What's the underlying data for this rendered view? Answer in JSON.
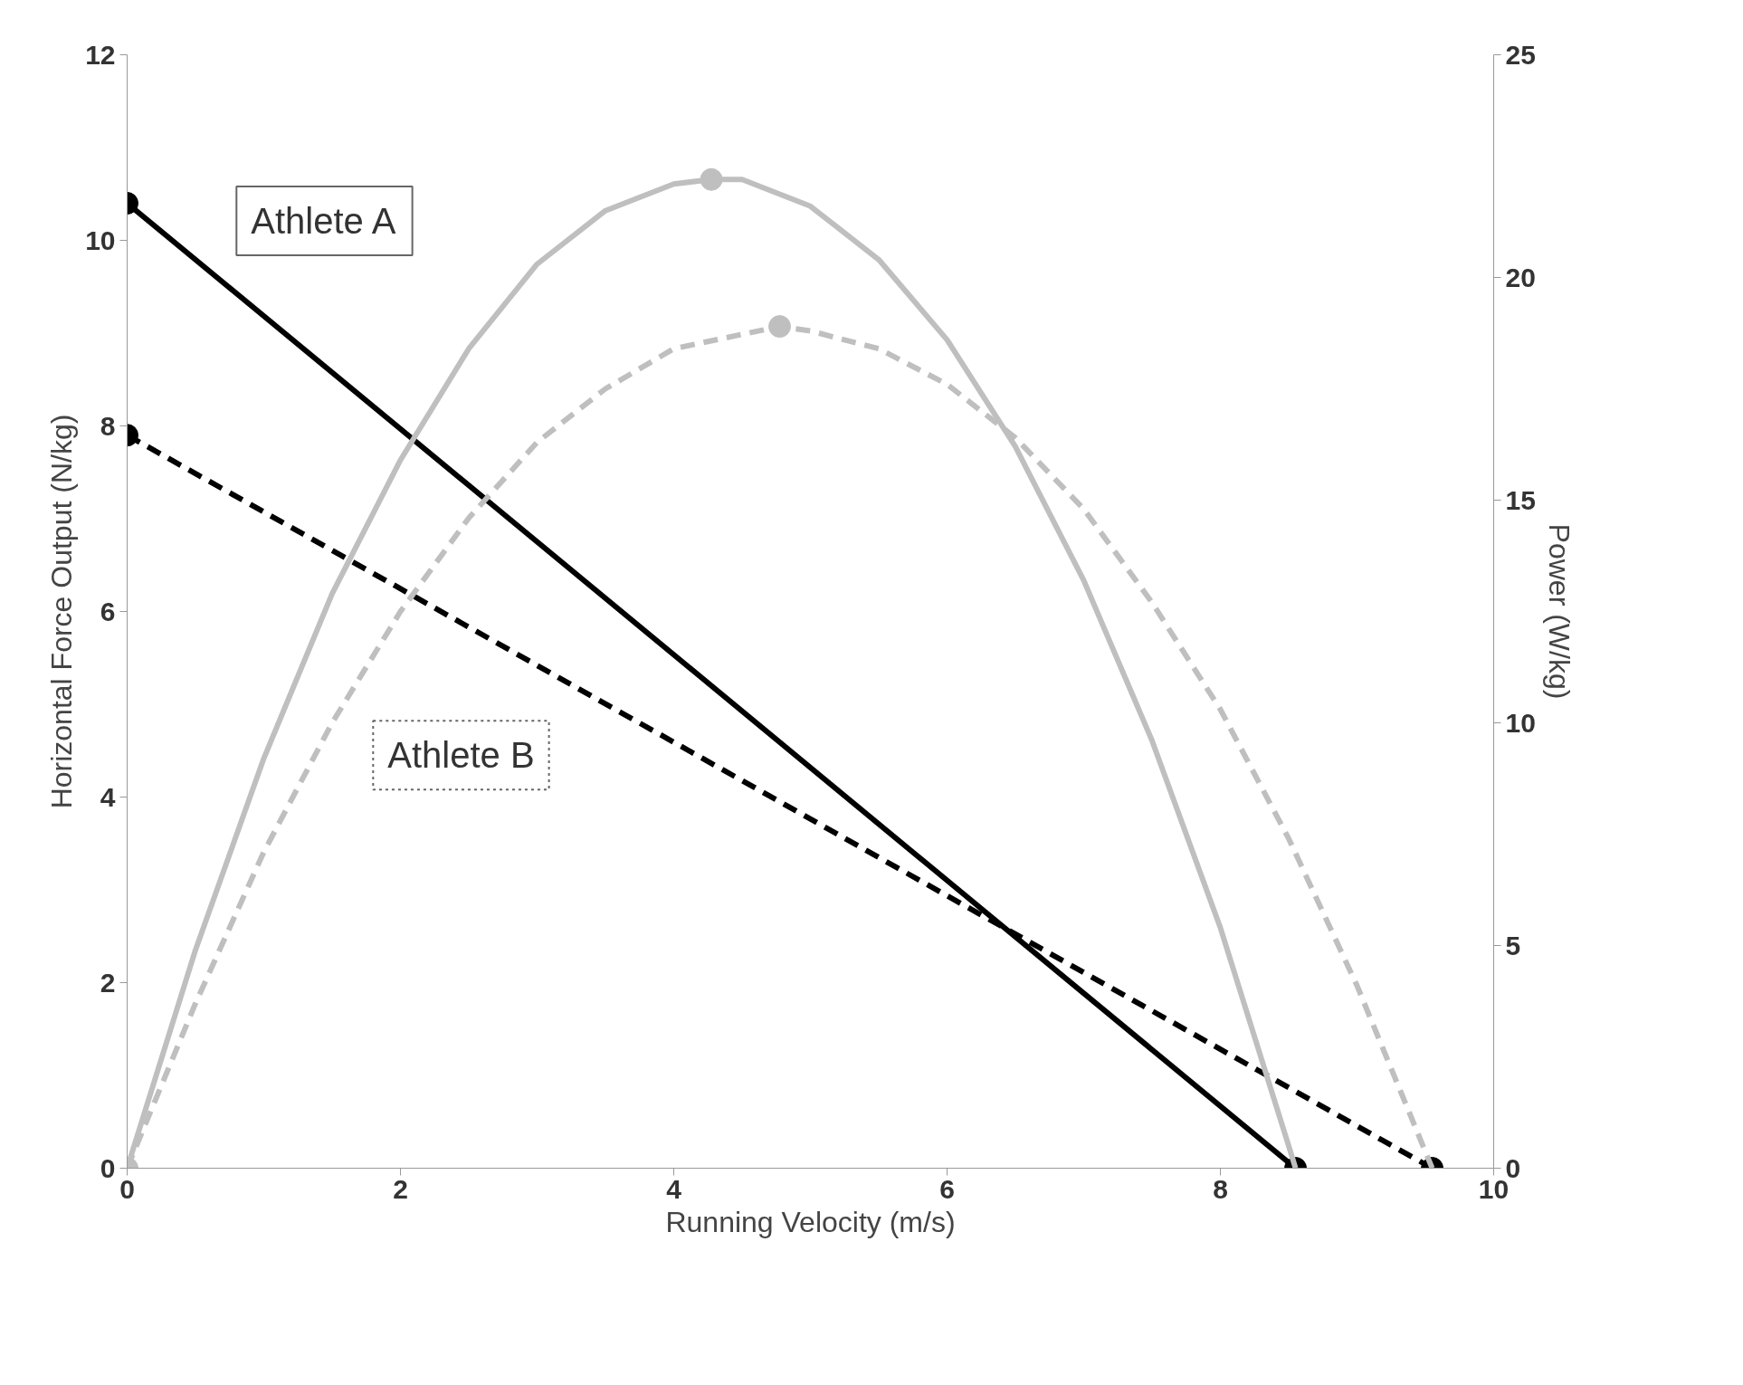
{
  "chart_data": {
    "type": "line",
    "xlabel": "Running Velocity (m/s)",
    "ylabel": "Horizontal Force Output (N/kg)",
    "y2label": "Power (W/kg)",
    "xlim": [
      0,
      10
    ],
    "xticks": [
      0,
      2,
      4,
      6,
      8,
      10
    ],
    "ylim": [
      0,
      12
    ],
    "yticks": [
      0,
      2,
      4,
      6,
      8,
      10,
      12
    ],
    "y2lim": [
      0,
      25
    ],
    "y2ticks": [
      0,
      5,
      10,
      15,
      20,
      25
    ],
    "grid": false,
    "annotations": [
      "Athlete A",
      "Athlete B"
    ],
    "series": [
      {
        "color": "#000000",
        "line_style": "solid",
        "marker": "circle",
        "x": [
          0,
          8.55
        ],
        "values": [
          10.4,
          0
        ]
      },
      {
        "color": "#000000",
        "line_style": "dashed",
        "marker": "circle",
        "x": [
          0,
          9.55
        ],
        "values": [
          7.9,
          0
        ]
      },
      {
        "color": "#bfbfbf",
        "line_style": "solid",
        "axis": "y2",
        "x": [
          0,
          0.5,
          1,
          1.5,
          2,
          2.5,
          3,
          3.5,
          4,
          4.275,
          4.5,
          5,
          5.5,
          6,
          6.5,
          7,
          7.5,
          8,
          8.5,
          8.55
        ],
        "values": [
          0,
          4.9,
          9.2,
          12.9,
          15.9,
          18.4,
          20.3,
          21.5,
          22.1,
          22.2,
          22.2,
          21.6,
          20.4,
          18.6,
          16.2,
          13.2,
          9.6,
          5.4,
          0.5,
          0
        ]
      },
      {
        "color": "#bfbfbf",
        "line_style": "dashed",
        "axis": "y2",
        "x": [
          0,
          0.5,
          1,
          1.5,
          2,
          2.5,
          3,
          3.5,
          4,
          4.775,
          5,
          5.5,
          6,
          6.5,
          7,
          7.5,
          8,
          8.5,
          9,
          9.55
        ],
        "values": [
          0,
          3.7,
          7.1,
          10.0,
          12.5,
          14.6,
          16.3,
          17.5,
          18.4,
          18.9,
          18.8,
          18.4,
          17.6,
          16.4,
          14.8,
          12.7,
          10.3,
          7.4,
          4.1,
          0
        ]
      },
      {
        "type": "scatter",
        "color": "#bfbfbf",
        "marker": "circle",
        "axis": "y2",
        "x": [
          0,
          4.275,
          4.775
        ],
        "values": [
          0,
          22.2,
          18.9
        ]
      }
    ]
  }
}
